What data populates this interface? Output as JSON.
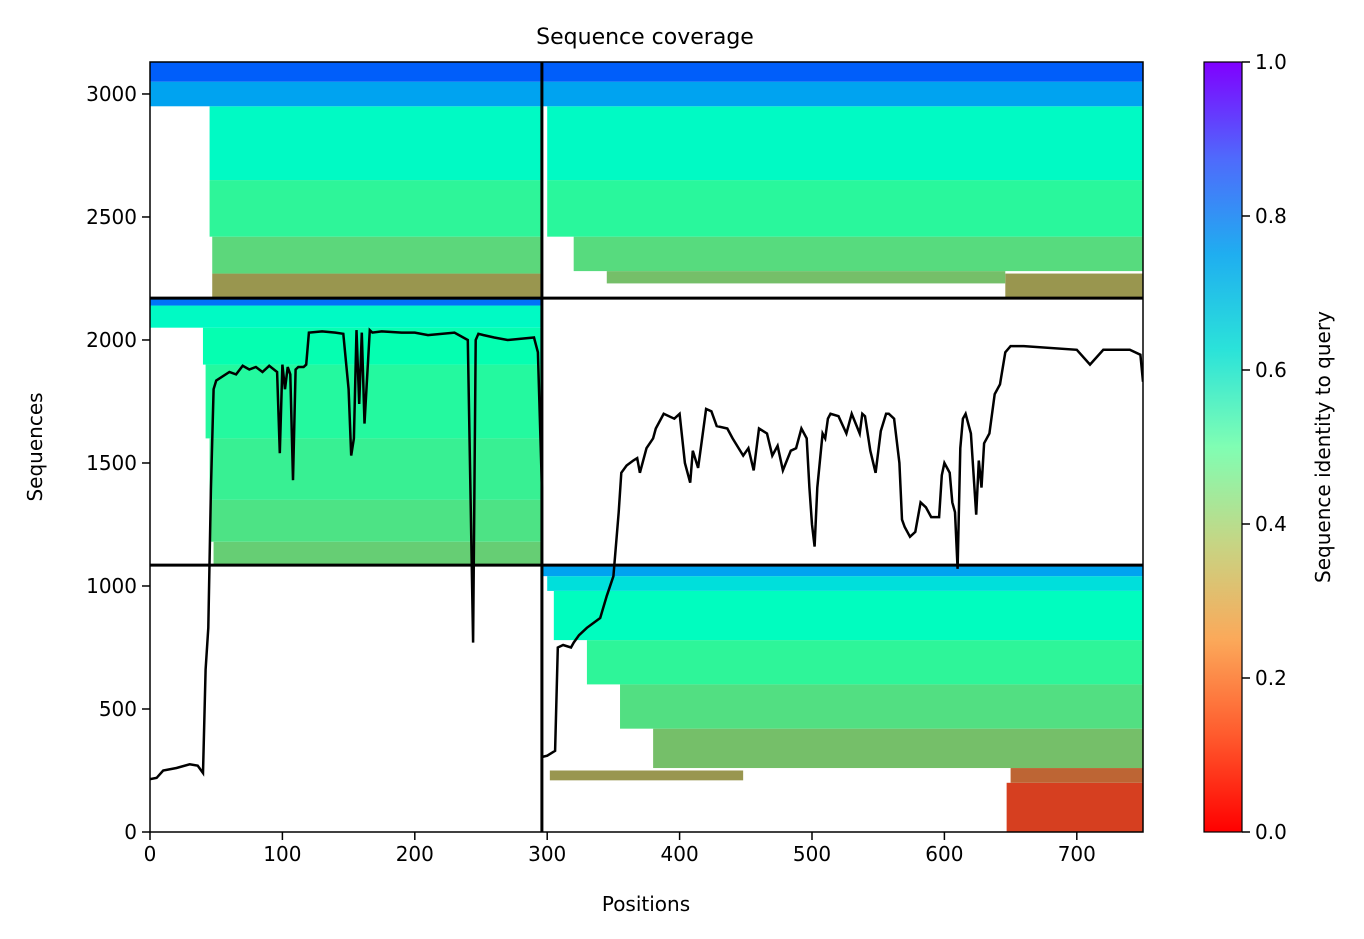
{
  "chart_data": {
    "type": "heatmap",
    "title": "Sequence coverage",
    "xlabel": "Positions",
    "ylabel": "Sequences",
    "xlim": [
      0,
      750
    ],
    "ylim": [
      0,
      3130
    ],
    "x_ticks": [
      0,
      100,
      200,
      300,
      400,
      500,
      600,
      700
    ],
    "y_ticks": [
      0,
      500,
      1000,
      1500,
      2000,
      2500,
      3000
    ],
    "colorbar": {
      "label": "Sequence identity to query",
      "range": [
        0,
        1
      ],
      "ticks": [
        "0.0",
        "0.2",
        "0.4",
        "0.6",
        "0.8",
        "1.0"
      ],
      "colormap": "rainbow_r"
    },
    "chain_boundaries": {
      "x": [
        296
      ],
      "y": [
        1085,
        2170
      ]
    },
    "blocks": [
      {
        "name": "bottom-right",
        "x_start": 296,
        "x_end": 750,
        "y_start": 0,
        "y_end": 1085,
        "bands": [
          {
            "y0": 0,
            "y1": 200,
            "x0": 647,
            "x1": 750,
            "identity": 0.08
          },
          {
            "y0": 200,
            "y1": 260,
            "x0": 650,
            "x1": 750,
            "identity": 0.13
          },
          {
            "y0": 210,
            "y1": 250,
            "x0": 302,
            "x1": 448,
            "identity": 0.2
          },
          {
            "y0": 260,
            "y1": 420,
            "x0": 380,
            "x1": 750,
            "identity": 0.27
          },
          {
            "y0": 420,
            "y1": 600,
            "x0": 355,
            "x1": 750,
            "identity": 0.34
          },
          {
            "y0": 600,
            "y1": 780,
            "x0": 330,
            "x1": 750,
            "identity": 0.41
          },
          {
            "y0": 780,
            "y1": 980,
            "x0": 305,
            "x1": 750,
            "identity": 0.54
          },
          {
            "y0": 980,
            "y1": 1040,
            "x0": 300,
            "x1": 750,
            "identity": 0.66
          },
          {
            "y0": 1040,
            "y1": 1085,
            "x0": 296,
            "x1": 750,
            "identity": 0.78
          }
        ]
      },
      {
        "name": "middle-left",
        "x_start": 0,
        "x_end": 296,
        "y_start": 1085,
        "y_end": 2170,
        "bands": [
          {
            "y0": 1085,
            "y1": 1180,
            "x0": 48,
            "x1": 296,
            "identity": 0.3
          },
          {
            "y0": 1180,
            "y1": 1350,
            "x0": 45,
            "x1": 296,
            "identity": 0.35
          },
          {
            "y0": 1350,
            "y1": 1600,
            "x0": 45,
            "x1": 296,
            "identity": 0.39
          },
          {
            "y0": 1600,
            "y1": 1900,
            "x0": 42,
            "x1": 296,
            "identity": 0.43
          },
          {
            "y0": 1900,
            "y1": 2050,
            "x0": 40,
            "x1": 296,
            "identity": 0.49
          },
          {
            "y0": 2050,
            "y1": 2140,
            "x0": 0,
            "x1": 296,
            "identity": 0.56
          },
          {
            "y0": 2140,
            "y1": 2170,
            "x0": 0,
            "x1": 296,
            "identity": 0.85
          }
        ]
      },
      {
        "name": "top-left",
        "x_start": 0,
        "x_end": 296,
        "y_start": 2170,
        "y_end": 3130,
        "bands": [
          {
            "y0": 2170,
            "y1": 2270,
            "x0": 47,
            "x1": 296,
            "identity": 0.2
          },
          {
            "y0": 2270,
            "y1": 2420,
            "x0": 47,
            "x1": 296,
            "identity": 0.32
          },
          {
            "y0": 2420,
            "y1": 2650,
            "x0": 45,
            "x1": 296,
            "identity": 0.41
          },
          {
            "y0": 2650,
            "y1": 2950,
            "x0": 45,
            "x1": 296,
            "identity": 0.56
          },
          {
            "y0": 2950,
            "y1": 3050,
            "x0": 0,
            "x1": 296,
            "identity": 0.78
          },
          {
            "y0": 3050,
            "y1": 3130,
            "x0": 0,
            "x1": 296,
            "identity": 0.88
          }
        ]
      },
      {
        "name": "top-right",
        "x_start": 296,
        "x_end": 750,
        "y_start": 2170,
        "y_end": 3130,
        "bands": [
          {
            "y0": 2170,
            "y1": 2270,
            "x0": 646,
            "x1": 750,
            "identity": 0.2
          },
          {
            "y0": 2230,
            "y1": 2280,
            "x0": 345,
            "x1": 646,
            "identity": 0.27
          },
          {
            "y0": 2280,
            "y1": 2420,
            "x0": 320,
            "x1": 750,
            "identity": 0.33
          },
          {
            "y0": 2420,
            "y1": 2650,
            "x0": 300,
            "x1": 750,
            "identity": 0.42
          },
          {
            "y0": 2650,
            "y1": 2950,
            "x0": 300,
            "x1": 750,
            "identity": 0.56
          },
          {
            "y0": 2950,
            "y1": 3050,
            "x0": 296,
            "x1": 750,
            "identity": 0.78
          },
          {
            "y0": 3050,
            "y1": 3130,
            "x0": 296,
            "x1": 750,
            "identity": 0.88
          }
        ]
      }
    ],
    "coverage_line": {
      "name": "coverage",
      "color": "#000000",
      "x": [
        0,
        5,
        10,
        20,
        30,
        36,
        40,
        42,
        44,
        46,
        48,
        50,
        60,
        65,
        70,
        75,
        80,
        85,
        90,
        96,
        98,
        100,
        102,
        104,
        106,
        108,
        110,
        112,
        116,
        118,
        120,
        130,
        140,
        146,
        150,
        152,
        154,
        156,
        158,
        160,
        162,
        166,
        168,
        175,
        190,
        195,
        200,
        210,
        230,
        240,
        244,
        246,
        248,
        252,
        260,
        270,
        290,
        293,
        296,
        296,
        300,
        306,
        308,
        312,
        318,
        320,
        324,
        330,
        340,
        345,
        350,
        354,
        356,
        360,
        365,
        368,
        370,
        375,
        380,
        382,
        388,
        396,
        400,
        404,
        408,
        410,
        414,
        416,
        420,
        424,
        428,
        436,
        440,
        448,
        452,
        456,
        460,
        466,
        470,
        474,
        478,
        484,
        488,
        492,
        496,
        498,
        500,
        502,
        504,
        508,
        510,
        512,
        514,
        520,
        526,
        530,
        536,
        538,
        540,
        544,
        548,
        552,
        556,
        558,
        562,
        566,
        568,
        570,
        574,
        578,
        582,
        586,
        590,
        596,
        598,
        600,
        604,
        606,
        608,
        610,
        612,
        614,
        616,
        620,
        624,
        626,
        628,
        630,
        634,
        638,
        642,
        646,
        650,
        660,
        700,
        710,
        720,
        740,
        748,
        750
      ],
      "y": [
        215,
        220,
        250,
        260,
        275,
        270,
        240,
        660,
        830,
        1390,
        1800,
        1835,
        1870,
        1860,
        1895,
        1880,
        1890,
        1870,
        1895,
        1870,
        1540,
        1900,
        1800,
        1890,
        1860,
        1430,
        1880,
        1890,
        1890,
        1900,
        2030,
        2035,
        2030,
        2025,
        1800,
        1530,
        1600,
        2040,
        1740,
        2030,
        1660,
        2040,
        2030,
        2035,
        2030,
        2030,
        2030,
        2020,
        2030,
        2000,
        770,
        2000,
        2025,
        2020,
        2010,
        2000,
        2010,
        1950,
        1400,
        305,
        310,
        330,
        750,
        760,
        750,
        770,
        800,
        830,
        870,
        960,
        1040,
        1300,
        1460,
        1490,
        1510,
        1520,
        1460,
        1560,
        1600,
        1640,
        1700,
        1680,
        1700,
        1500,
        1420,
        1550,
        1480,
        1560,
        1720,
        1710,
        1650,
        1640,
        1600,
        1530,
        1560,
        1470,
        1640,
        1620,
        1530,
        1570,
        1470,
        1550,
        1560,
        1640,
        1600,
        1400,
        1250,
        1160,
        1400,
        1620,
        1600,
        1680,
        1700,
        1690,
        1620,
        1700,
        1620,
        1700,
        1690,
        1550,
        1460,
        1630,
        1700,
        1700,
        1680,
        1500,
        1270,
        1240,
        1200,
        1220,
        1340,
        1320,
        1280,
        1280,
        1450,
        1500,
        1460,
        1340,
        1300,
        1070,
        1560,
        1680,
        1700,
        1620,
        1290,
        1510,
        1400,
        1580,
        1620,
        1780,
        1820,
        1950,
        1975,
        1975,
        1960,
        1900,
        1960,
        1960,
        1940,
        1830
      ]
    }
  }
}
